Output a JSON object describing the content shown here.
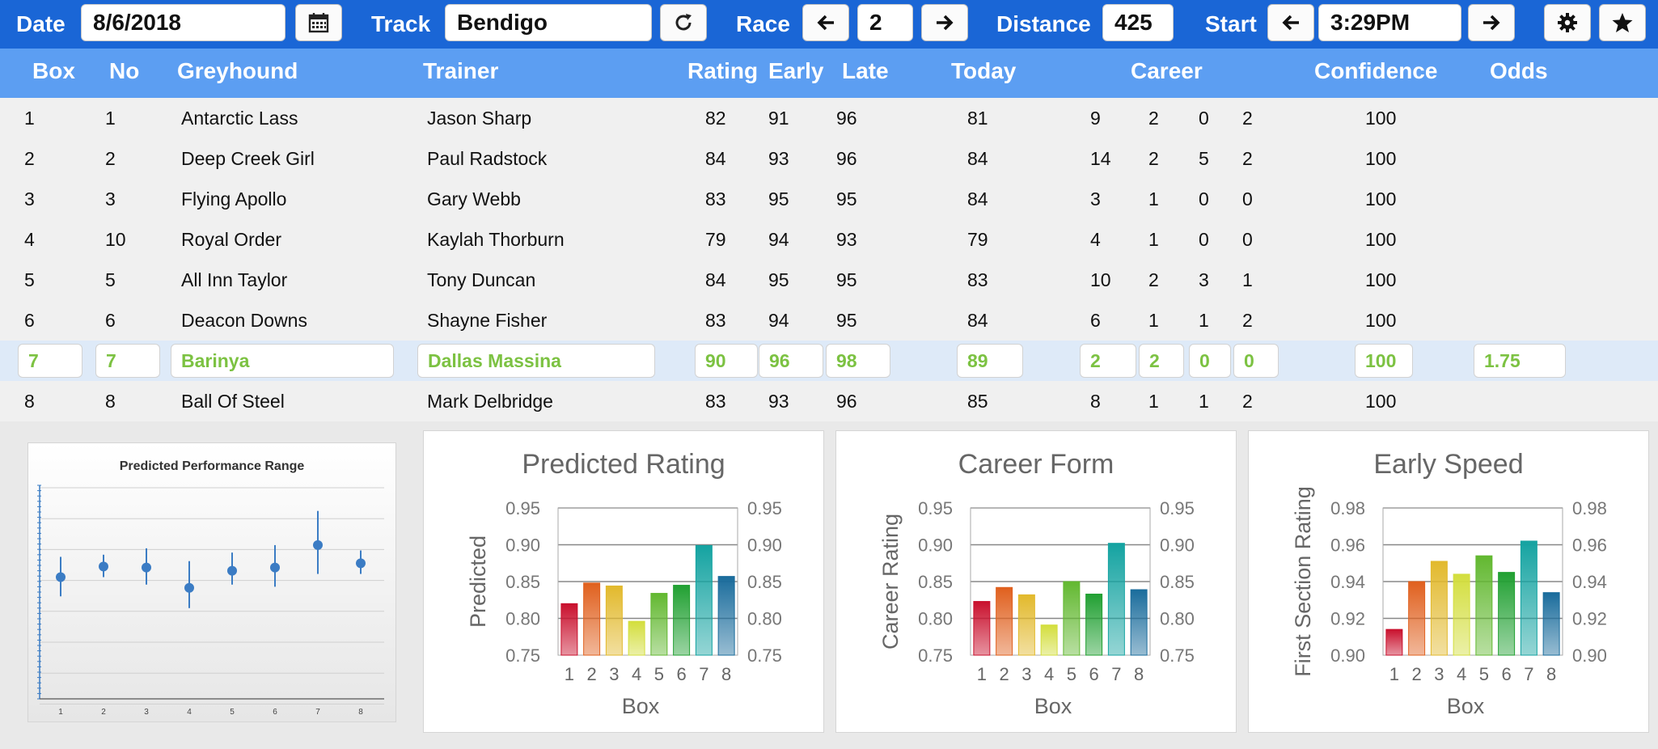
{
  "toolbar": {
    "date_label": "Date",
    "date_value": "8/6/2018",
    "track_label": "Track",
    "track_value": "Bendigo",
    "race_label": "Race",
    "race_value": "2",
    "distance_label": "Distance",
    "distance_value": "425",
    "start_label": "Start",
    "start_value": "3:29PM"
  },
  "columns": {
    "box": "Box",
    "no": "No",
    "greyhound": "Greyhound",
    "trainer": "Trainer",
    "rating": "Rating",
    "early": "Early",
    "late": "Late",
    "today": "Today",
    "career": "Career",
    "confidence": "Confidence",
    "odds": "Odds"
  },
  "runners": [
    {
      "box": "1",
      "no": "1",
      "greyhound": "Antarctic Lass",
      "trainer": "Jason Sharp",
      "rating": "82",
      "early": "91",
      "late": "96",
      "today": "81",
      "c1": "9",
      "c2": "2",
      "c3": "0",
      "c4": "2",
      "confidence": "100",
      "odds": ""
    },
    {
      "box": "2",
      "no": "2",
      "greyhound": "Deep Creek Girl",
      "trainer": "Paul Radstock",
      "rating": "84",
      "early": "93",
      "late": "96",
      "today": "84",
      "c1": "14",
      "c2": "2",
      "c3": "5",
      "c4": "2",
      "confidence": "100",
      "odds": ""
    },
    {
      "box": "3",
      "no": "3",
      "greyhound": "Flying Apollo",
      "trainer": "Gary Webb",
      "rating": "83",
      "early": "95",
      "late": "95",
      "today": "84",
      "c1": "3",
      "c2": "1",
      "c3": "0",
      "c4": "0",
      "confidence": "100",
      "odds": ""
    },
    {
      "box": "4",
      "no": "10",
      "greyhound": "Royal Order",
      "trainer": "Kaylah Thorburn",
      "rating": "79",
      "early": "94",
      "late": "93",
      "today": "79",
      "c1": "4",
      "c2": "1",
      "c3": "0",
      "c4": "0",
      "confidence": "100",
      "odds": ""
    },
    {
      "box": "5",
      "no": "5",
      "greyhound": "All Inn Taylor",
      "trainer": "Tony Duncan",
      "rating": "84",
      "early": "95",
      "late": "95",
      "today": "83",
      "c1": "10",
      "c2": "2",
      "c3": "3",
      "c4": "1",
      "confidence": "100",
      "odds": ""
    },
    {
      "box": "6",
      "no": "6",
      "greyhound": "Deacon Downs",
      "trainer": "Shayne Fisher",
      "rating": "83",
      "early": "94",
      "late": "95",
      "today": "84",
      "c1": "6",
      "c2": "1",
      "c3": "1",
      "c4": "2",
      "confidence": "100",
      "odds": ""
    },
    {
      "box": "7",
      "no": "7",
      "greyhound": "Barinya",
      "trainer": "Dallas Massina",
      "rating": "90",
      "early": "96",
      "late": "98",
      "today": "89",
      "c1": "2",
      "c2": "2",
      "c3": "0",
      "c4": "0",
      "confidence": "100",
      "odds": "1.75",
      "selected": true
    },
    {
      "box": "8",
      "no": "8",
      "greyhound": "Ball Of Steel",
      "trainer": "Mark Delbridge",
      "rating": "83",
      "early": "93",
      "late": "96",
      "today": "85",
      "c1": "8",
      "c2": "1",
      "c3": "1",
      "c4": "2",
      "confidence": "100",
      "odds": ""
    }
  ],
  "icons": {
    "calendar": "calendar-icon",
    "refresh": "refresh-icon",
    "prev": "arrow-left-icon",
    "next": "arrow-right-icon",
    "settings": "gear-icon",
    "favorite": "star-icon"
  },
  "colors": {
    "toolbar": "#1a66d6",
    "header": "#5c9ef2",
    "selected_text": "#7cc242",
    "selected_row": "#deeaf8"
  },
  "chart_data": [
    {
      "type": "scatter",
      "title": "Predicted Performance Range",
      "x": [
        1,
        2,
        3,
        4,
        5,
        6,
        7,
        8
      ],
      "y": [
        0.57,
        0.62,
        0.615,
        0.52,
        0.6,
        0.615,
        0.72,
        0.635
      ],
      "y_low": [
        0.48,
        0.57,
        0.535,
        0.425,
        0.535,
        0.525,
        0.585,
        0.585
      ],
      "y_high": [
        0.665,
        0.675,
        0.705,
        0.645,
        0.685,
        0.72,
        0.88,
        0.695
      ],
      "ylim": [
        0,
        1
      ],
      "error_bars": true,
      "grid": true
    },
    {
      "type": "bar",
      "title": "Predicted Rating",
      "categories": [
        "1",
        "2",
        "3",
        "4",
        "5",
        "6",
        "7",
        "8"
      ],
      "values": [
        0.82,
        0.848,
        0.844,
        0.796,
        0.834,
        0.845,
        0.899,
        0.857
      ],
      "xlabel": "Box",
      "ylabel": "Predicted",
      "ylim": [
        0.75,
        0.95
      ],
      "yticks": [
        "0.75",
        "0.80",
        "0.85",
        "0.90",
        "0.95"
      ],
      "grid": true
    },
    {
      "type": "bar",
      "title": "Career Form",
      "categories": [
        "1",
        "2",
        "3",
        "4",
        "5",
        "6",
        "7",
        "8"
      ],
      "values": [
        0.823,
        0.842,
        0.832,
        0.791,
        0.85,
        0.833,
        0.902,
        0.839
      ],
      "xlabel": "Box",
      "ylabel": "Career Rating",
      "ylim": [
        0.75,
        0.95
      ],
      "yticks": [
        "0.75",
        "0.80",
        "0.85",
        "0.90",
        "0.95"
      ],
      "grid": true
    },
    {
      "type": "bar",
      "title": "Early Speed",
      "categories": [
        "1",
        "2",
        "3",
        "4",
        "5",
        "6",
        "7",
        "8"
      ],
      "values": [
        0.914,
        0.94,
        0.951,
        0.944,
        0.954,
        0.945,
        0.962,
        0.934
      ],
      "xlabel": "Box",
      "ylabel": "First Section Rating",
      "ylim": [
        0.9,
        0.98
      ],
      "yticks": [
        "0.90",
        "0.92",
        "0.94",
        "0.96",
        "0.98"
      ],
      "grid": true
    }
  ],
  "bar_colors": [
    "#c9102d",
    "#e0601e",
    "#e2b92c",
    "#d3de3d",
    "#62b830",
    "#21a032",
    "#14a3a1",
    "#1a6c9c"
  ]
}
